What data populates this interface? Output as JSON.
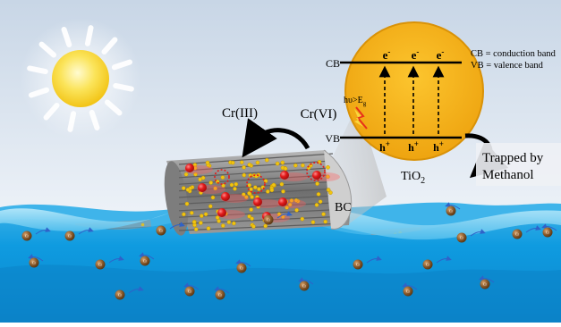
{
  "labels": {
    "cr3": "Cr(III)",
    "cr6": "Cr(VI)",
    "bc": "BC",
    "cb": "CB",
    "vb": "VB",
    "cb_def": "CB = conduction band",
    "vb_def": "VB = valence band",
    "electron": "e",
    "electron_sup": "-",
    "hole": "h",
    "hole_sup": "+",
    "photon": "hυ>E",
    "photon_sub": "g",
    "tio2": "TiO",
    "tio2_sub": "2",
    "trapped_line1": "Trapped by",
    "trapped_line2": "Methanol",
    "particle": "Cr"
  },
  "colors": {
    "sky_top": "#cfdbe8",
    "sky_bottom": "#f7f9fc",
    "sun": "#fbe45a",
    "circle_fill": "#f4b11c",
    "circle_edge": "#d99208",
    "water_dark": "#0f8fd6",
    "water_light": "#5fc6ef",
    "wave_light": "#9fdff7",
    "fiber": "#8c8c8c",
    "dot": "#f1c40f",
    "red": "#e21b1b",
    "particle": "#8a5a2b"
  }
}
